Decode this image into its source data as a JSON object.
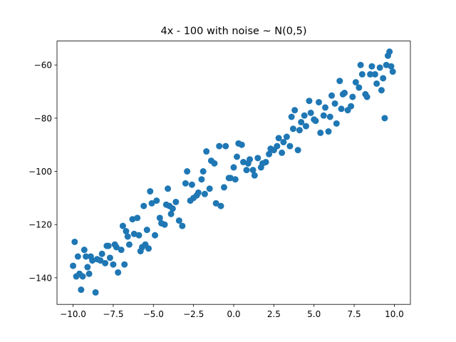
{
  "chart_data": {
    "type": "scatter",
    "title": "4x - 100 with noise ~ N(0,5)",
    "color": "#1f77b4",
    "x": [
      -10.0,
      -9.9,
      -9.8,
      -9.7,
      -9.6,
      -9.5,
      -9.4,
      -9.3,
      -9.2,
      -9.1,
      -9.0,
      -8.9,
      -8.8,
      -8.6,
      -8.5,
      -8.3,
      -8.2,
      -8.0,
      -7.9,
      -7.8,
      -7.7,
      -7.5,
      -7.4,
      -7.3,
      -7.2,
      -7.0,
      -6.9,
      -6.8,
      -6.7,
      -6.6,
      -6.5,
      -6.3,
      -6.2,
      -6.0,
      -5.9,
      -5.8,
      -5.7,
      -5.6,
      -5.5,
      -5.4,
      -5.3,
      -5.2,
      -5.1,
      -4.9,
      -4.8,
      -4.6,
      -4.5,
      -4.3,
      -4.2,
      -4.1,
      -4.0,
      -3.9,
      -3.8,
      -3.6,
      -3.4,
      -3.2,
      -3.0,
      -2.9,
      -2.7,
      -2.6,
      -2.5,
      -2.3,
      -2.2,
      -2.0,
      -1.9,
      -1.8,
      -1.7,
      -1.5,
      -1.4,
      -1.2,
      -1.1,
      -0.9,
      -0.8,
      -0.6,
      -0.5,
      -0.3,
      -0.2,
      0.0,
      0.1,
      0.2,
      0.3,
      0.5,
      0.6,
      0.8,
      0.9,
      1.0,
      1.2,
      1.3,
      1.5,
      1.7,
      1.8,
      2.0,
      2.2,
      2.3,
      2.5,
      2.7,
      2.8,
      3.0,
      3.1,
      3.3,
      3.5,
      3.6,
      3.7,
      3.8,
      4.0,
      4.1,
      4.2,
      4.4,
      4.5,
      4.7,
      4.8,
      5.0,
      5.1,
      5.3,
      5.4,
      5.6,
      5.7,
      5.9,
      6.0,
      6.1,
      6.3,
      6.4,
      6.6,
      6.7,
      6.8,
      6.9,
      7.1,
      7.3,
      7.4,
      7.6,
      7.8,
      7.9,
      8.0,
      8.2,
      8.3,
      8.5,
      8.6,
      8.8,
      8.9,
      9.1,
      9.2,
      9.3,
      9.4,
      9.5,
      9.6,
      9.7,
      9.8,
      9.9
    ],
    "values": [
      -135.5,
      -126.5,
      -139.5,
      -132,
      -138.5,
      -144.5,
      -139.5,
      -129.5,
      -132,
      -136,
      -138.5,
      -132,
      -133.5,
      -145.5,
      -133,
      -133.5,
      -131,
      -134.5,
      -128,
      -128,
      -132.5,
      -135,
      -127.5,
      -128.5,
      -138,
      -129.5,
      -120.5,
      -135,
      -122.5,
      -124.5,
      -127.5,
      -118,
      -123.5,
      -117.5,
      -124,
      -130,
      -128.5,
      -113,
      -127.5,
      -122,
      -129,
      -107.5,
      -112,
      -124,
      -111,
      -117.5,
      -119.5,
      -120,
      -112.5,
      -106.5,
      -113,
      -116,
      -114,
      -111.5,
      -118.5,
      -120.5,
      -104.5,
      -100,
      -111,
      -105,
      -110,
      -109,
      -108,
      -103,
      -100,
      -108.5,
      -92.5,
      -106.5,
      -96,
      -97,
      -112,
      -90.5,
      -113,
      -106,
      -90.5,
      -102.5,
      -102.5,
      -98.5,
      -103,
      -94.5,
      -89.5,
      -90,
      -96.5,
      -99.5,
      -97,
      -95.5,
      -99.5,
      -101.5,
      -95,
      -98.5,
      -97,
      -96.5,
      -93.5,
      -91.5,
      -92,
      -90.5,
      -87.5,
      -93,
      -89,
      -87,
      -90.5,
      -79.5,
      -84,
      -77,
      -92,
      -84.5,
      -81.5,
      -79,
      -83,
      -73.5,
      -78,
      -80.5,
      -81,
      -74,
      -85.5,
      -79,
      -76,
      -85,
      -79.5,
      -71.5,
      -74.5,
      -82,
      -66,
      -76.5,
      -71,
      -70.5,
      -77,
      -75.5,
      -72,
      -66.5,
      -68.5,
      -60,
      -63.5,
      -71,
      -72,
      -63.5,
      -60.5,
      -63.5,
      -67,
      -61,
      -69.5,
      -65,
      -80,
      -60,
      -56.5,
      -55,
      -60.5,
      -62.5
    ],
    "xlim": [
      -11,
      11
    ],
    "xticks": [
      {
        "value": -10,
        "label": "−10.0"
      },
      {
        "value": -7.5,
        "label": "−7.5"
      },
      {
        "value": -5,
        "label": "−5.0"
      },
      {
        "value": -2.5,
        "label": "−2.5"
      },
      {
        "value": 0,
        "label": "0.0"
      },
      {
        "value": 2.5,
        "label": "2.5"
      },
      {
        "value": 5,
        "label": "5.0"
      },
      {
        "value": 7.5,
        "label": "7.5"
      },
      {
        "value": 10,
        "label": "10.0"
      }
    ],
    "ylim": [
      -150,
      -51
    ],
    "yticks": [
      {
        "value": -140,
        "label": "−140"
      },
      {
        "value": -120,
        "label": "−120"
      },
      {
        "value": -100,
        "label": "−100"
      },
      {
        "value": -80,
        "label": "−80"
      },
      {
        "value": -60,
        "label": "−60"
      }
    ]
  }
}
